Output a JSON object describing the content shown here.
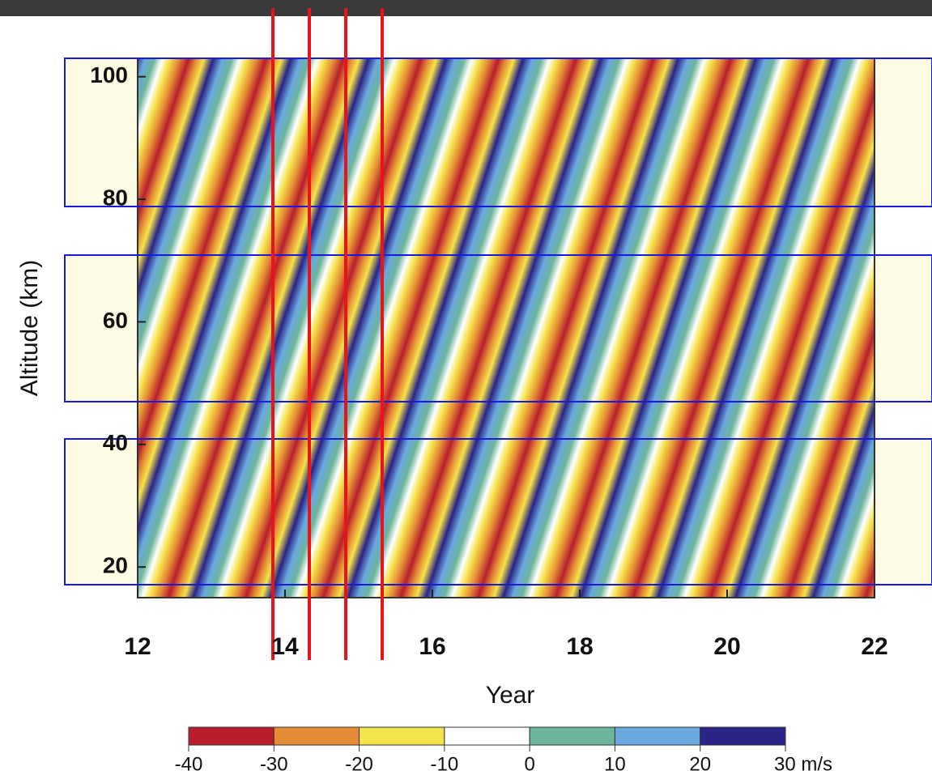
{
  "chart_data": {
    "type": "contour",
    "xlabel": "Year",
    "ylabel": "Altitude (km)",
    "xlim": [
      12,
      22
    ],
    "xticks": [
      12,
      14,
      16,
      18,
      20,
      22
    ],
    "ylim": [
      15,
      103
    ],
    "yticks": [
      20,
      40,
      60,
      80,
      100
    ],
    "colorbar": {
      "colors": [
        "#b81e2e",
        "#e58a35",
        "#f4e34a",
        "#ffffff",
        "#6db59a",
        "#6aa8df",
        "#2a2486"
      ],
      "ticks": [
        -40,
        -30,
        -20,
        -10,
        0,
        10,
        20,
        {
          "value": 30,
          "label": "30 m/s"
        }
      ]
    }
  }
}
